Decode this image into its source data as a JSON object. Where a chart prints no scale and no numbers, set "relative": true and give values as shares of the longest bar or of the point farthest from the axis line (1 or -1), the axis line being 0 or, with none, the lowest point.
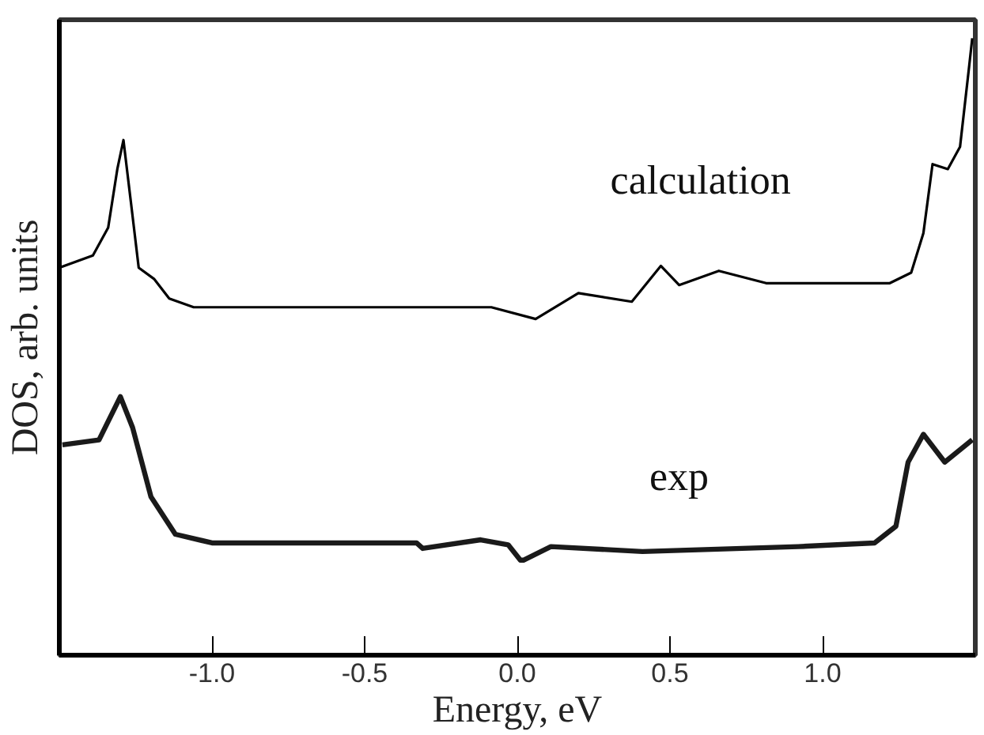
{
  "chart_data": {
    "type": "line",
    "xlabel": "Energy, eV",
    "ylabel": "DOS, arb. units",
    "relative": true,
    "xlim": [
      -1.5,
      1.5
    ],
    "xticks": [
      {
        "value": -1.0,
        "label": "-1.0"
      },
      {
        "value": -0.5,
        "label": "-0.5"
      },
      {
        "value": 0.0,
        "label": "0.0"
      },
      {
        "value": 0.5,
        "label": "0.5"
      },
      {
        "value": 1.0,
        "label": "1.0"
      }
    ],
    "grid": false,
    "marker": "none",
    "line_style": "solid",
    "series": [
      {
        "name": "calculation",
        "color": "#000000",
        "x": [
          -1.5,
          -1.39,
          -1.34,
          -1.31,
          -1.29,
          -1.265,
          -1.24,
          -1.19,
          -1.14,
          -1.06,
          -0.085,
          0.06,
          0.2,
          0.375,
          0.47,
          0.53,
          0.66,
          0.815,
          1.22,
          1.29,
          1.33,
          1.36,
          1.41,
          1.45,
          1.48,
          1.49
        ],
        "values": [
          0.628,
          0.648,
          0.693,
          0.788,
          0.835,
          0.732,
          0.628,
          0.61,
          0.578,
          0.564,
          0.564,
          0.545,
          0.587,
          0.573,
          0.631,
          0.6,
          0.623,
          0.603,
          0.603,
          0.62,
          0.684,
          0.796,
          0.788,
          0.824,
          0.955,
          1.0
        ]
      },
      {
        "name": "exp",
        "color": "#1a1a1a",
        "x": [
          -1.49,
          -1.37,
          -1.3,
          -1.26,
          -1.2,
          -1.12,
          -1.0,
          -0.33,
          -0.31,
          -0.12,
          -0.03,
          0.01,
          0.02,
          0.11,
          0.41,
          0.92,
          1.17,
          1.24,
          1.28,
          1.33,
          1.4,
          1.49
        ],
        "values": [
          0.341,
          0.349,
          0.419,
          0.369,
          0.257,
          0.196,
          0.182,
          0.182,
          0.173,
          0.187,
          0.179,
          0.154,
          0.154,
          0.176,
          0.168,
          0.176,
          0.182,
          0.209,
          0.313,
          0.358,
          0.313,
          0.349
        ]
      }
    ]
  }
}
